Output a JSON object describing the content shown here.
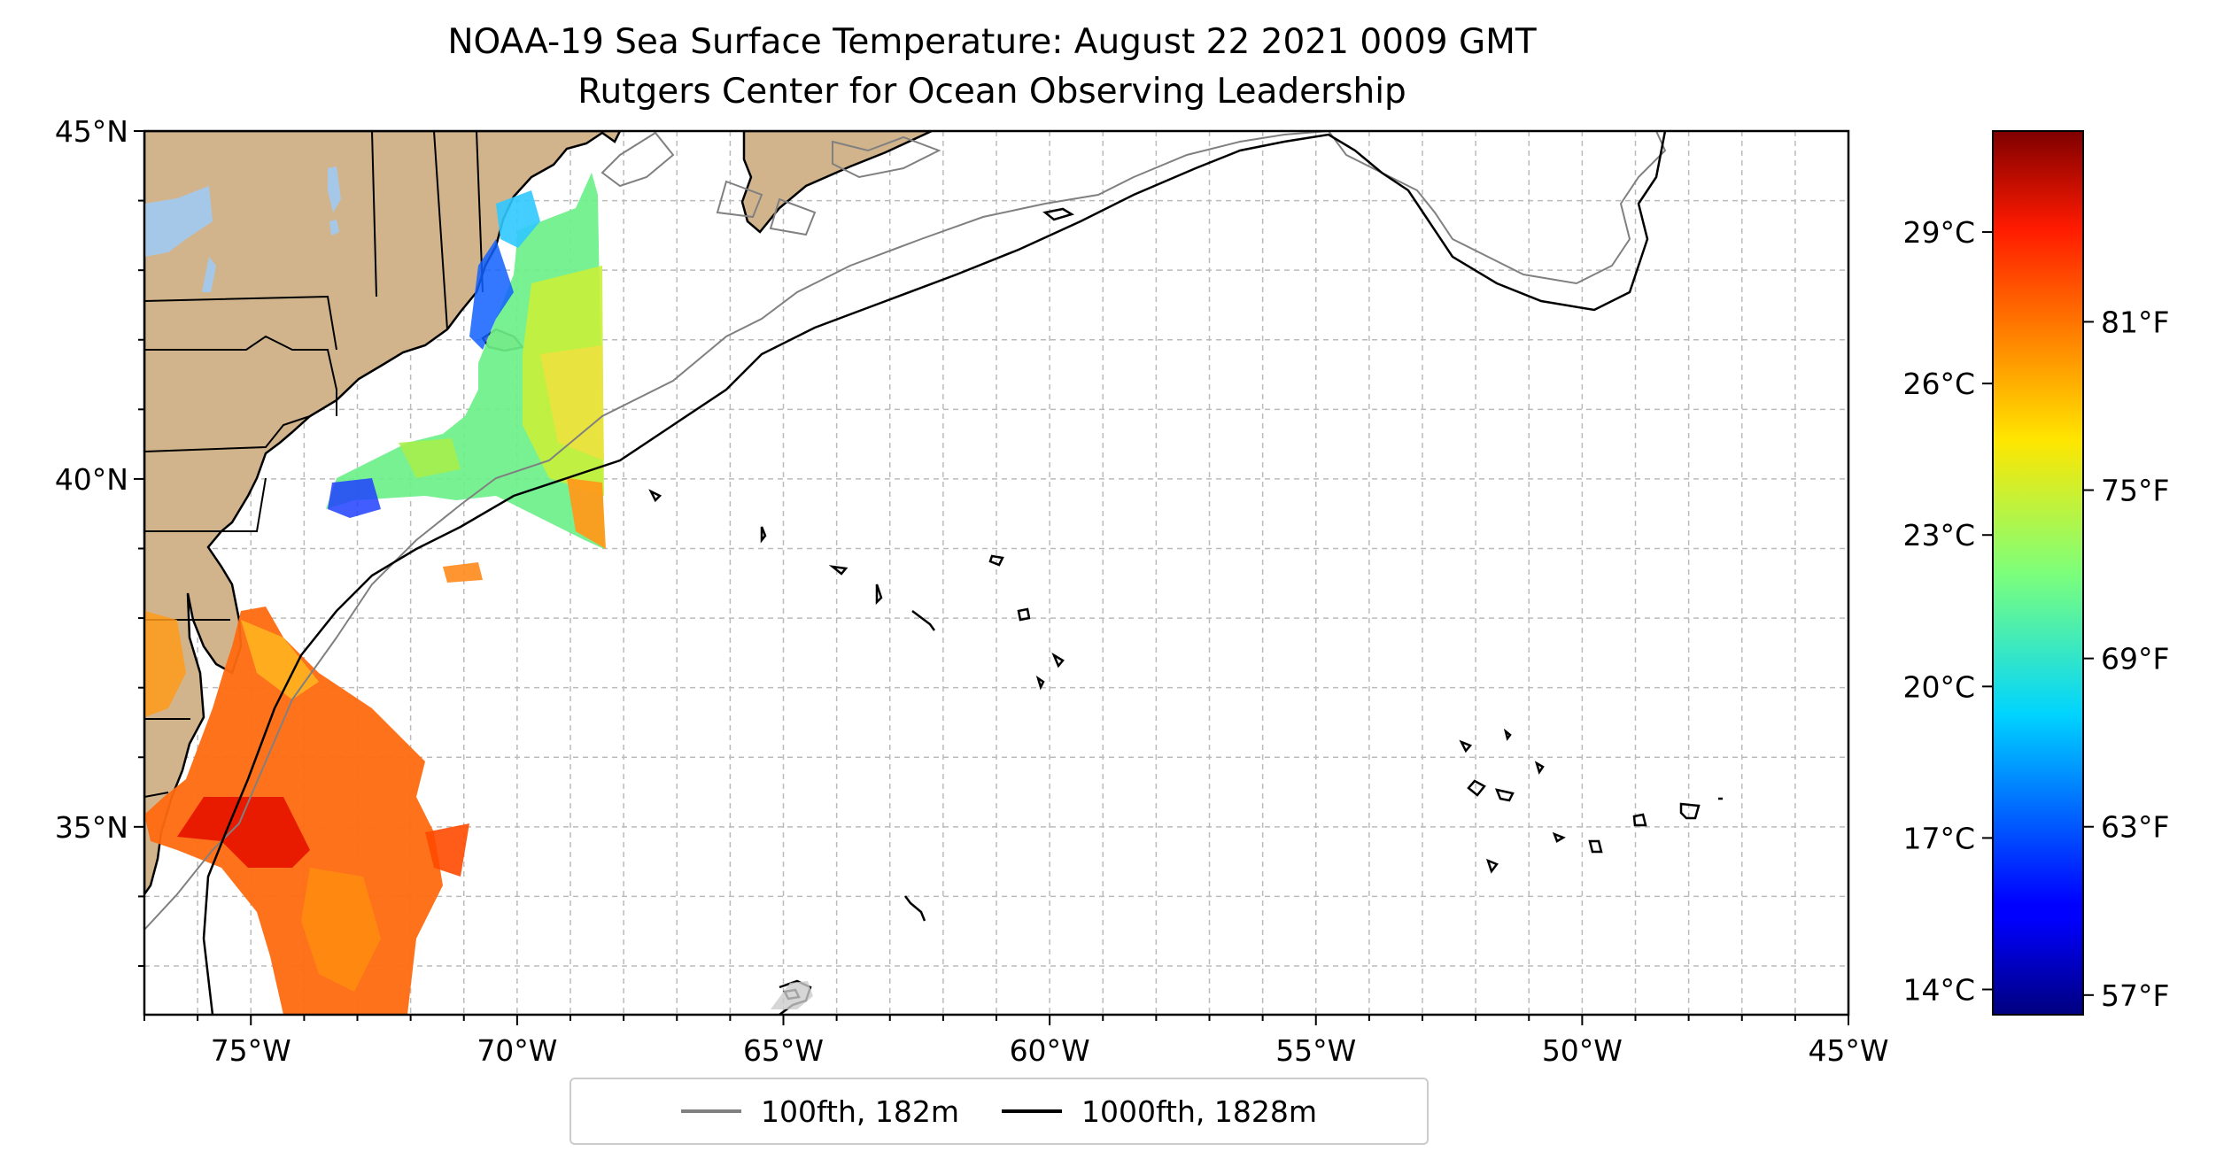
{
  "title": "NOAA-19 Sea Surface Temperature: August 22 2021 0009 GMT",
  "subtitle": "Rutgers Center for Ocean Observing Leadership",
  "map": {
    "lon_range": [
      -77,
      -45
    ],
    "lat_range": [
      32.3,
      45
    ],
    "lat_tick_labels": [
      "45°N",
      "40°N",
      "35°N"
    ],
    "lon_tick_labels": [
      "75°W",
      "70°W",
      "65°W",
      "60°W",
      "55°W",
      "50°W",
      "45°W"
    ],
    "grid": "dashed",
    "land_color": "#d2b48c",
    "water_body_color": "#a6c8e8",
    "contour_100_color": "#808080",
    "contour_1000_color": "#000000"
  },
  "colorbar": {
    "colormap": "jet",
    "range_c": [
      13.5,
      31.0
    ],
    "celsius_labels": [
      "29°C",
      "26°C",
      "23°C",
      "20°C",
      "17°C",
      "14°C"
    ],
    "fahrenheit_labels": [
      "81°F",
      "75°F",
      "69°F",
      "63°F",
      "57°F"
    ]
  },
  "legend": {
    "items": [
      {
        "label": "100fth, 182m",
        "color": "#808080"
      },
      {
        "label": "1000fth, 1828m",
        "color": "#000000"
      }
    ]
  }
}
